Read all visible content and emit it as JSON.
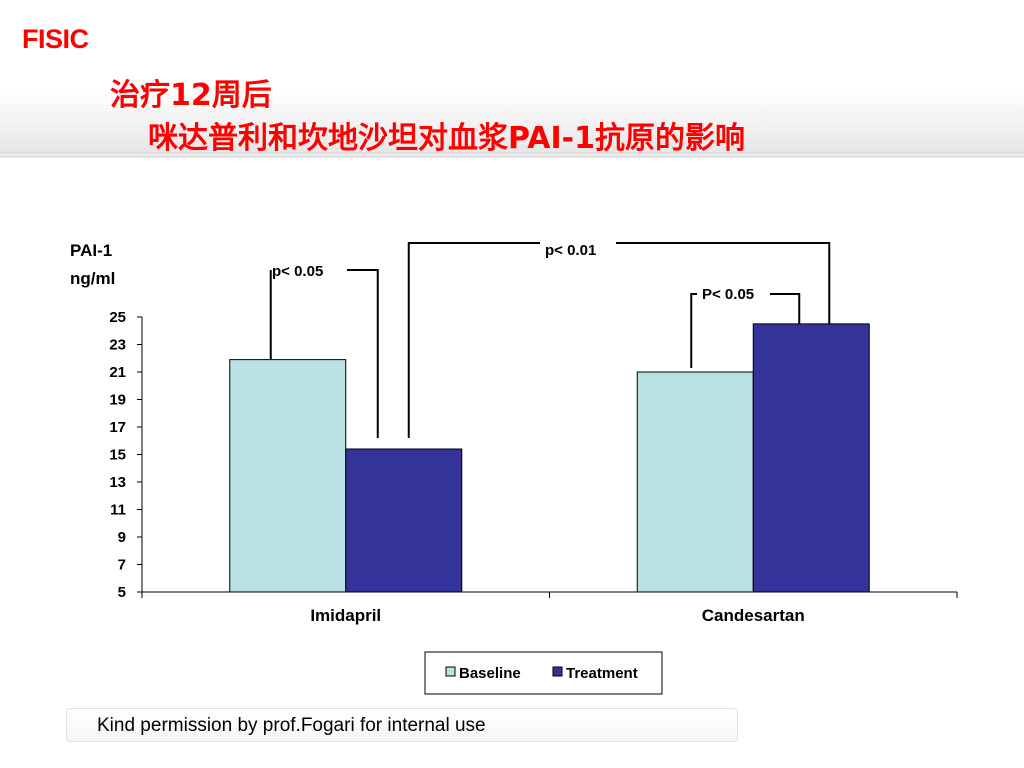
{
  "slide": {
    "brand": "FISIC",
    "title_line1": "治疗12周后",
    "title_line2": "咪达普利和坎地沙坦对血浆PAI-1抗原的影响",
    "footer": "Kind permission by prof.Fogari for internal use"
  },
  "colors": {
    "title": "#ff0000",
    "baseline": "#b9e0e2",
    "treatment": "#333399"
  },
  "chart_data": {
    "type": "bar",
    "ylabel_line1": "PAI-1",
    "ylabel_line2": "ng/ml",
    "ylim": [
      5,
      25
    ],
    "yticks": [
      5,
      7,
      9,
      11,
      13,
      15,
      17,
      19,
      21,
      23,
      25
    ],
    "categories": [
      "Imidapril",
      "Candesartan"
    ],
    "series": [
      {
        "name": "Baseline",
        "values": [
          21.9,
          21.0
        ]
      },
      {
        "name": "Treatment",
        "values": [
          15.4,
          24.5
        ]
      }
    ],
    "legend_position": "bottom",
    "annotations": [
      {
        "text": "p< 0.05"
      },
      {
        "text": "p< 0.01"
      },
      {
        "text": "P< 0.05"
      }
    ]
  }
}
